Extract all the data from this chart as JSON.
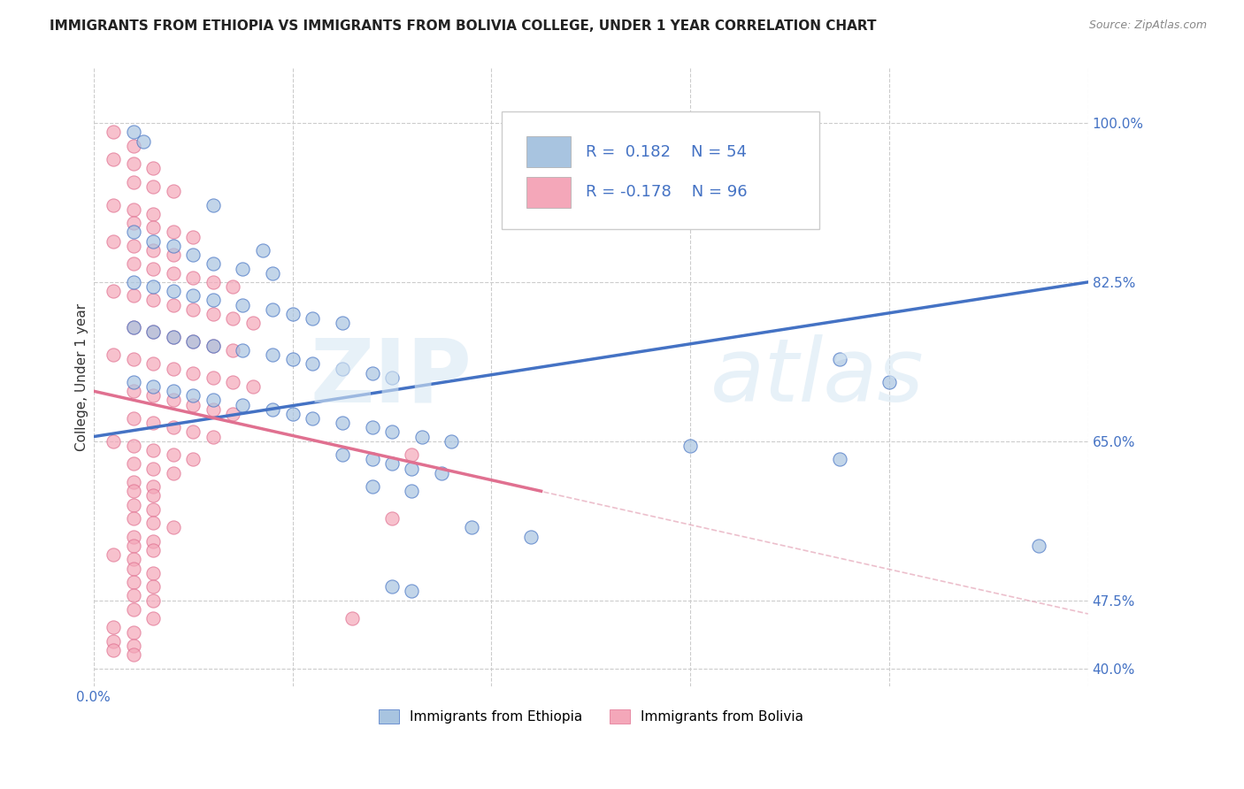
{
  "title": "IMMIGRANTS FROM ETHIOPIA VS IMMIGRANTS FROM BOLIVIA COLLEGE, UNDER 1 YEAR CORRELATION CHART",
  "source": "Source: ZipAtlas.com",
  "ylabel": "College, Under 1 year",
  "xlim": [
    0.0,
    1.0
  ],
  "ylim": [
    0.38,
    1.06
  ],
  "right_ytick_positions": [
    1.0,
    0.825,
    0.65,
    0.475,
    0.4
  ],
  "right_ytick_labels": [
    "100.0%",
    "82.5%",
    "65.0%",
    "47.5%",
    "40.0%"
  ],
  "color_ethiopia": "#a8c4e0",
  "color_bolivia": "#f4a7b9",
  "trendline_ethiopia_color": "#4472c4",
  "trendline_bolivia_color": "#e07090",
  "trendline_ext_color": "#e8b0c0",
  "watermark_zip": "ZIP",
  "watermark_atlas": "atlas",
  "ethiopia_scatter": [
    [
      0.04,
      0.99
    ],
    [
      0.05,
      0.98
    ],
    [
      0.12,
      0.91
    ],
    [
      0.17,
      0.86
    ],
    [
      0.04,
      0.88
    ],
    [
      0.06,
      0.87
    ],
    [
      0.08,
      0.865
    ],
    [
      0.1,
      0.855
    ],
    [
      0.12,
      0.845
    ],
    [
      0.15,
      0.84
    ],
    [
      0.18,
      0.835
    ],
    [
      0.04,
      0.825
    ],
    [
      0.06,
      0.82
    ],
    [
      0.08,
      0.815
    ],
    [
      0.1,
      0.81
    ],
    [
      0.12,
      0.805
    ],
    [
      0.15,
      0.8
    ],
    [
      0.18,
      0.795
    ],
    [
      0.2,
      0.79
    ],
    [
      0.22,
      0.785
    ],
    [
      0.25,
      0.78
    ],
    [
      0.04,
      0.775
    ],
    [
      0.06,
      0.77
    ],
    [
      0.08,
      0.765
    ],
    [
      0.1,
      0.76
    ],
    [
      0.12,
      0.755
    ],
    [
      0.15,
      0.75
    ],
    [
      0.18,
      0.745
    ],
    [
      0.2,
      0.74
    ],
    [
      0.22,
      0.735
    ],
    [
      0.25,
      0.73
    ],
    [
      0.28,
      0.725
    ],
    [
      0.3,
      0.72
    ],
    [
      0.04,
      0.715
    ],
    [
      0.06,
      0.71
    ],
    [
      0.08,
      0.705
    ],
    [
      0.1,
      0.7
    ],
    [
      0.12,
      0.695
    ],
    [
      0.15,
      0.69
    ],
    [
      0.18,
      0.685
    ],
    [
      0.2,
      0.68
    ],
    [
      0.22,
      0.675
    ],
    [
      0.25,
      0.67
    ],
    [
      0.28,
      0.665
    ],
    [
      0.3,
      0.66
    ],
    [
      0.33,
      0.655
    ],
    [
      0.36,
      0.65
    ],
    [
      0.25,
      0.635
    ],
    [
      0.28,
      0.63
    ],
    [
      0.3,
      0.625
    ],
    [
      0.32,
      0.62
    ],
    [
      0.35,
      0.615
    ],
    [
      0.28,
      0.6
    ],
    [
      0.32,
      0.595
    ],
    [
      0.75,
      0.74
    ],
    [
      0.8,
      0.715
    ],
    [
      0.6,
      0.645
    ],
    [
      0.75,
      0.63
    ],
    [
      0.38,
      0.555
    ],
    [
      0.44,
      0.545
    ],
    [
      0.95,
      0.535
    ],
    [
      0.3,
      0.49
    ],
    [
      0.32,
      0.485
    ]
  ],
  "bolivia_scatter": [
    [
      0.02,
      0.99
    ],
    [
      0.04,
      0.975
    ],
    [
      0.02,
      0.96
    ],
    [
      0.04,
      0.955
    ],
    [
      0.06,
      0.95
    ],
    [
      0.04,
      0.935
    ],
    [
      0.06,
      0.93
    ],
    [
      0.08,
      0.925
    ],
    [
      0.02,
      0.91
    ],
    [
      0.04,
      0.905
    ],
    [
      0.06,
      0.9
    ],
    [
      0.04,
      0.89
    ],
    [
      0.06,
      0.885
    ],
    [
      0.08,
      0.88
    ],
    [
      0.1,
      0.875
    ],
    [
      0.02,
      0.87
    ],
    [
      0.04,
      0.865
    ],
    [
      0.06,
      0.86
    ],
    [
      0.08,
      0.855
    ],
    [
      0.04,
      0.845
    ],
    [
      0.06,
      0.84
    ],
    [
      0.08,
      0.835
    ],
    [
      0.1,
      0.83
    ],
    [
      0.12,
      0.825
    ],
    [
      0.14,
      0.82
    ],
    [
      0.02,
      0.815
    ],
    [
      0.04,
      0.81
    ],
    [
      0.06,
      0.805
    ],
    [
      0.08,
      0.8
    ],
    [
      0.1,
      0.795
    ],
    [
      0.12,
      0.79
    ],
    [
      0.14,
      0.785
    ],
    [
      0.16,
      0.78
    ],
    [
      0.04,
      0.775
    ],
    [
      0.06,
      0.77
    ],
    [
      0.08,
      0.765
    ],
    [
      0.1,
      0.76
    ],
    [
      0.12,
      0.755
    ],
    [
      0.14,
      0.75
    ],
    [
      0.02,
      0.745
    ],
    [
      0.04,
      0.74
    ],
    [
      0.06,
      0.735
    ],
    [
      0.08,
      0.73
    ],
    [
      0.1,
      0.725
    ],
    [
      0.12,
      0.72
    ],
    [
      0.14,
      0.715
    ],
    [
      0.16,
      0.71
    ],
    [
      0.04,
      0.705
    ],
    [
      0.06,
      0.7
    ],
    [
      0.08,
      0.695
    ],
    [
      0.1,
      0.69
    ],
    [
      0.12,
      0.685
    ],
    [
      0.14,
      0.68
    ],
    [
      0.04,
      0.675
    ],
    [
      0.06,
      0.67
    ],
    [
      0.08,
      0.665
    ],
    [
      0.1,
      0.66
    ],
    [
      0.12,
      0.655
    ],
    [
      0.02,
      0.65
    ],
    [
      0.04,
      0.645
    ],
    [
      0.06,
      0.64
    ],
    [
      0.08,
      0.635
    ],
    [
      0.1,
      0.63
    ],
    [
      0.04,
      0.625
    ],
    [
      0.06,
      0.62
    ],
    [
      0.08,
      0.615
    ],
    [
      0.04,
      0.605
    ],
    [
      0.06,
      0.6
    ],
    [
      0.32,
      0.635
    ],
    [
      0.04,
      0.595
    ],
    [
      0.06,
      0.59
    ],
    [
      0.04,
      0.58
    ],
    [
      0.06,
      0.575
    ],
    [
      0.04,
      0.565
    ],
    [
      0.06,
      0.56
    ],
    [
      0.08,
      0.555
    ],
    [
      0.04,
      0.545
    ],
    [
      0.06,
      0.54
    ],
    [
      0.04,
      0.535
    ],
    [
      0.06,
      0.53
    ],
    [
      0.02,
      0.525
    ],
    [
      0.04,
      0.52
    ],
    [
      0.04,
      0.51
    ],
    [
      0.06,
      0.505
    ],
    [
      0.04,
      0.495
    ],
    [
      0.06,
      0.49
    ],
    [
      0.04,
      0.48
    ],
    [
      0.06,
      0.475
    ],
    [
      0.04,
      0.465
    ],
    [
      0.06,
      0.455
    ],
    [
      0.02,
      0.445
    ],
    [
      0.04,
      0.44
    ],
    [
      0.02,
      0.43
    ],
    [
      0.04,
      0.425
    ],
    [
      0.04,
      0.415
    ],
    [
      0.26,
      0.455
    ],
    [
      0.3,
      0.565
    ],
    [
      0.02,
      0.42
    ]
  ],
  "trendline1_x": [
    0.0,
    1.0
  ],
  "trendline1_y": [
    0.655,
    0.825
  ],
  "trendline2_x": [
    0.0,
    0.45
  ],
  "trendline2_y": [
    0.705,
    0.595
  ],
  "ext_trendline2_x": [
    0.0,
    1.0
  ],
  "ext_trendline2_y": [
    0.705,
    0.46
  ],
  "title_fontsize": 11,
  "axis_label_fontsize": 11,
  "tick_fontsize": 11,
  "legend_fontsize": 13
}
